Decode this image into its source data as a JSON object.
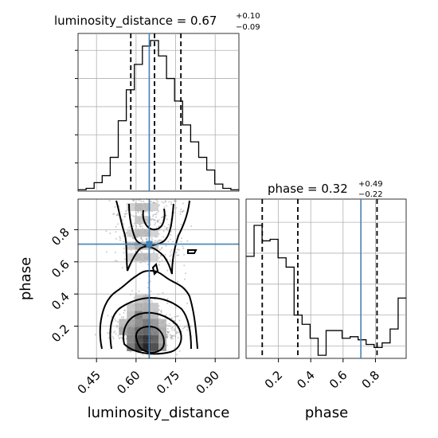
{
  "chart_data": [
    {
      "type": "histogram",
      "panel": "luminosity_distance-marginal",
      "title_prefix": "luminosity_distance = 0.67",
      "title_plus": "+0.10",
      "title_minus": "−0.09",
      "xlim": [
        0.38,
        0.99
      ],
      "bin_edges": [
        0.38,
        0.4105,
        0.441,
        0.4715,
        0.502,
        0.5325,
        0.563,
        0.5935,
        0.624,
        0.6545,
        0.685,
        0.7155,
        0.746,
        0.7765,
        0.807,
        0.8375,
        0.868,
        0.8985,
        0.929,
        0.9595,
        0.99
      ],
      "counts": [
        1,
        2,
        6,
        11,
        24,
        50,
        72,
        90,
        103,
        107,
        96,
        80,
        64,
        47,
        35,
        24,
        15,
        5,
        2,
        1
      ],
      "quantiles": [
        0.58,
        0.67,
        0.77
      ],
      "truth": 0.65,
      "grid": true
    },
    {
      "type": "histogram",
      "panel": "phase-marginal",
      "title_prefix": "phase = 0.32",
      "title_plus": "+0.49",
      "title_minus": "−0.22",
      "xlim": [
        0.0,
        0.99
      ],
      "bin_edges": [
        0.0,
        0.0495,
        0.099,
        0.1485,
        0.198,
        0.2475,
        0.297,
        0.3465,
        0.396,
        0.4455,
        0.495,
        0.5445,
        0.594,
        0.6435,
        0.693,
        0.7425,
        0.792,
        0.8415,
        0.891,
        0.9405,
        0.99
      ],
      "counts": [
        58,
        78,
        68,
        69,
        57,
        51,
        20,
        14,
        5,
        -6,
        10,
        10,
        5,
        6,
        4,
        1,
        -1,
        2,
        11,
        31
      ],
      "quantiles": [
        0.1,
        0.32,
        0.81
      ],
      "truth": 0.71,
      "xticks": [
        "0.2",
        "0.4",
        "0.6",
        "0.8"
      ],
      "xlabel": "phase",
      "grid": true
    },
    {
      "type": "heatmap",
      "panel": "phase-vs-luminosity_distance",
      "xlim": [
        0.38,
        0.99
      ],
      "ylim": [
        0.0,
        0.99
      ],
      "xticks": [
        "0.45",
        "0.60",
        "0.75",
        "0.90"
      ],
      "yticks": [
        "0.2",
        "0.4",
        "0.6",
        "0.8"
      ],
      "xlabel": "luminosity_distance",
      "ylabel": "phase",
      "truth": [
        0.65,
        0.71
      ],
      "cells": [
        [
          0.58,
          0.07,
          0.6
        ],
        [
          0.61,
          0.07,
          0.85
        ],
        [
          0.64,
          0.07,
          1.0
        ],
        [
          0.67,
          0.07,
          0.8
        ],
        [
          0.7,
          0.07,
          0.45
        ],
        [
          0.58,
          0.12,
          0.55
        ],
        [
          0.61,
          0.12,
          0.8
        ],
        [
          0.64,
          0.12,
          0.9
        ],
        [
          0.67,
          0.12,
          0.7
        ],
        [
          0.7,
          0.12,
          0.4
        ],
        [
          0.55,
          0.17,
          0.4
        ],
        [
          0.58,
          0.17,
          0.5
        ],
        [
          0.61,
          0.17,
          0.65
        ],
        [
          0.64,
          0.17,
          0.7
        ],
        [
          0.67,
          0.17,
          0.55
        ],
        [
          0.7,
          0.17,
          0.35
        ],
        [
          0.55,
          0.22,
          0.3
        ],
        [
          0.58,
          0.22,
          0.4
        ],
        [
          0.61,
          0.22,
          0.5
        ],
        [
          0.64,
          0.22,
          0.6
        ],
        [
          0.67,
          0.22,
          0.45
        ],
        [
          0.7,
          0.22,
          0.3
        ],
        [
          0.58,
          0.27,
          0.3
        ],
        [
          0.61,
          0.27,
          0.55
        ],
        [
          0.64,
          0.27,
          0.45
        ],
        [
          0.67,
          0.27,
          0.3
        ],
        [
          0.58,
          0.32,
          0.25
        ],
        [
          0.61,
          0.32,
          0.35
        ],
        [
          0.64,
          0.32,
          0.35
        ],
        [
          0.67,
          0.32,
          0.25
        ],
        [
          0.61,
          0.37,
          0.25
        ],
        [
          0.64,
          0.37,
          0.3
        ],
        [
          0.58,
          0.63,
          0.2
        ],
        [
          0.61,
          0.63,
          0.3
        ],
        [
          0.64,
          0.63,
          0.3
        ],
        [
          0.67,
          0.63,
          0.2
        ],
        [
          0.58,
          0.7,
          0.25
        ],
        [
          0.61,
          0.7,
          0.35
        ],
        [
          0.64,
          0.7,
          0.3
        ],
        [
          0.67,
          0.7,
          0.25
        ],
        [
          0.58,
          0.78,
          0.2
        ],
        [
          0.61,
          0.78,
          0.3
        ],
        [
          0.64,
          0.78,
          0.3
        ],
        [
          0.67,
          0.78,
          0.2
        ],
        [
          0.61,
          0.86,
          0.25
        ],
        [
          0.64,
          0.86,
          0.25
        ],
        [
          0.58,
          0.94,
          0.2
        ],
        [
          0.61,
          0.94,
          0.3
        ],
        [
          0.64,
          0.94,
          0.3
        ],
        [
          0.67,
          0.94,
          0.2
        ]
      ]
    }
  ]
}
